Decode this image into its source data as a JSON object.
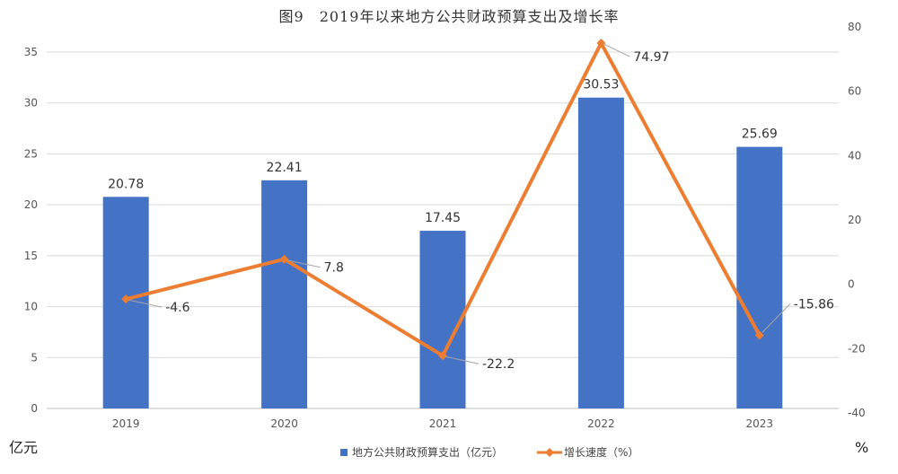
{
  "chart_data": {
    "type": "bar",
    "title": "图9　2019年以来地方公共财政预算支出及增长率",
    "categories": [
      "2019",
      "2020",
      "2021",
      "2022",
      "2023"
    ],
    "series": [
      {
        "name": "地方公共财政预算支出（亿元）",
        "type": "bar",
        "axis": "left",
        "color": "#4472C4",
        "values": [
          20.78,
          22.41,
          17.45,
          30.53,
          25.69
        ],
        "labels": [
          "20.78",
          "22.41",
          "17.45",
          "30.53",
          "25.69"
        ]
      },
      {
        "name": "增长速度（%）",
        "type": "line",
        "axis": "right",
        "color": "#ED7D31",
        "values": [
          -4.6,
          7.8,
          -22.2,
          74.97,
          -15.86
        ],
        "labels": [
          "-4.6",
          "7.8",
          "-22.2",
          "74.97",
          "-15.86"
        ]
      }
    ],
    "y_left": {
      "label": "亿元",
      "min": 0,
      "max": 35,
      "ticks": [
        "0",
        "5",
        "10",
        "15",
        "20",
        "25",
        "30",
        "35"
      ]
    },
    "y_right": {
      "label": "%",
      "min": -40,
      "max": 80,
      "ticks": [
        "-40",
        "-20",
        "0",
        "20",
        "40",
        "60",
        "80"
      ]
    },
    "grid": true,
    "legend_position": "bottom"
  }
}
